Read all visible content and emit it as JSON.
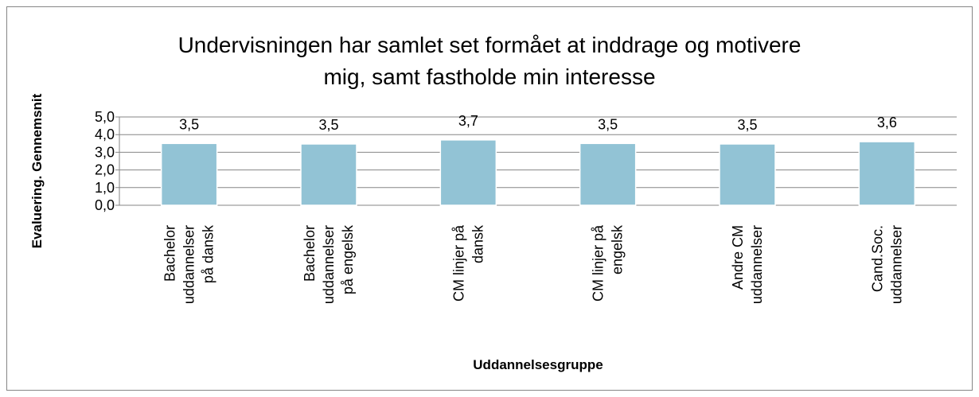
{
  "chart_data": {
    "type": "bar",
    "title": "Undervisningen har samlet set formået at inddrage og motivere mig, samt fastholde min interesse",
    "x_label": "Uddannelsesgruppe",
    "y_label": "Evaluering. Gennemsnit",
    "categories": [
      "Bachelor uddannelser på dansk",
      "Bachelor uddannelser på engelsk",
      "CM linjer på dansk",
      "CM linjer på engelsk",
      "Andre CM uddannelser",
      "Cand.Soc. uddannelser"
    ],
    "values": [
      3.5,
      3.47,
      3.7,
      3.5,
      3.47,
      3.6
    ],
    "value_labels": [
      "3,5",
      "3,5",
      "3,7",
      "3,5",
      "3,5",
      "3,6"
    ],
    "color": "#92c3d5",
    "ylim": [
      0,
      5
    ],
    "yticks": [
      {
        "value": 0,
        "label": "0,0"
      },
      {
        "value": 1,
        "label": "1,0"
      },
      {
        "value": 2,
        "label": "2,0"
      },
      {
        "value": 3,
        "label": "3,0"
      },
      {
        "value": 4,
        "label": "4,0"
      },
      {
        "value": 5,
        "label": "5,0"
      }
    ],
    "grid": true
  }
}
